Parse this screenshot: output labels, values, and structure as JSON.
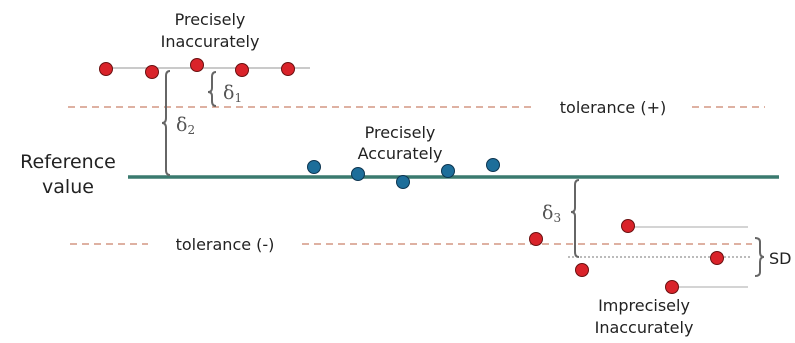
{
  "labels": {
    "precisely_inaccurately_1": "Precisely",
    "precisely_inaccurately_2": "Inaccurately",
    "precisely_accurately_1": "Precisely",
    "precisely_accurately_2": "Accurately",
    "imprecisely_inaccurately_1": "Imprecisely",
    "imprecisely_inaccurately_2": "Inaccurately",
    "reference_1": "Reference",
    "reference_2": "value",
    "tolerance_plus": "tolerance (+)",
    "tolerance_minus": "tolerance (-)",
    "sd": "SD",
    "delta": "δ",
    "delta1_sub": "1",
    "delta2_sub": "2",
    "delta3_sub": "3"
  },
  "colors": {
    "reference_line": "#3a7a6f",
    "tolerance_line": "#c9826a",
    "red_point": "#d9232a",
    "blue_point": "#1d6e9a",
    "bracket": "#666666"
  }
}
